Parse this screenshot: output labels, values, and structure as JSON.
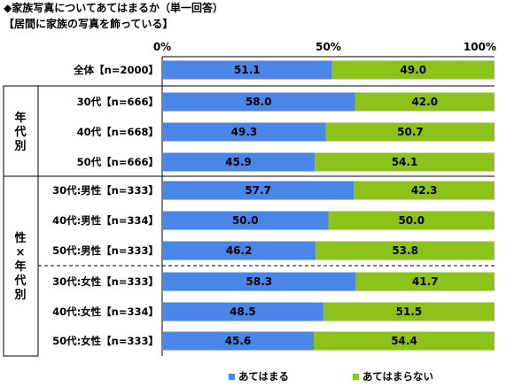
{
  "chart_data": {
    "type": "bar",
    "title": "◆家族写真についてあてはまるか（単一回答）",
    "subtitle": "【居間に家族の写真を飾っている】",
    "x_ticks": [
      "0%",
      "50%",
      "100%"
    ],
    "xlim": [
      0,
      100
    ],
    "categories": [
      "全体【n=2000】",
      "30代【n=666】",
      "40代【n=668】",
      "50代【n=666】",
      "30代:男性【n=333】",
      "40代:男性【n=334】",
      "50代:男性【n=333】",
      "30代:女性【n=333】",
      "40代:女性【n=334】",
      "50代:女性【n=333】"
    ],
    "series": [
      {
        "name": "あてはまる",
        "color": "#4A86E8",
        "values": [
          51.1,
          58.0,
          49.3,
          45.9,
          57.7,
          50.0,
          46.2,
          58.3,
          48.5,
          45.6
        ]
      },
      {
        "name": "あてはまらない",
        "color": "#8CC21A",
        "values": [
          49.0,
          42.0,
          50.7,
          54.1,
          42.3,
          50.0,
          53.8,
          41.7,
          51.5,
          54.4
        ]
      }
    ],
    "groups": [
      {
        "label": "年代別",
        "rows": [
          1,
          2,
          3
        ]
      },
      {
        "label": "性×年代別",
        "rows": [
          4,
          5,
          6,
          7,
          8,
          9
        ]
      }
    ],
    "stacked": true,
    "legend_position": "bottom"
  }
}
